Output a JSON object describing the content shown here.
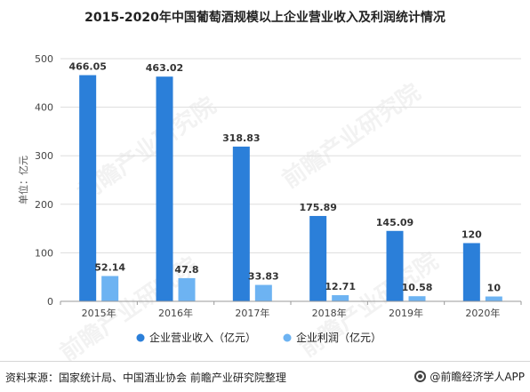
{
  "title": "2015-2020年中国葡萄酒规模以上企业营业收入及利润统计情况",
  "source": "资料来源：国家统计局、中国酒业协会 前瞻产业研究院整理",
  "brand": "@前瞻经济学人APP",
  "watermark": "前瞻产业研究院",
  "colors": {
    "revenue": "#2b7fd9",
    "profit": "#6db3f2",
    "grid": "#dddddd",
    "axis": "#999999"
  },
  "chart_data": {
    "type": "bar",
    "categories": [
      "2015年",
      "2016年",
      "2017年",
      "2018年",
      "2019年",
      "2020年"
    ],
    "series": [
      {
        "name": "企业营业收入（亿元）",
        "values": [
          466.05,
          463.02,
          318.83,
          175.89,
          145.09,
          120
        ]
      },
      {
        "name": "企业利润（亿元）",
        "values": [
          52.14,
          47.8,
          33.83,
          12.71,
          10.58,
          10
        ]
      }
    ],
    "data_labels": [
      [
        "466.05",
        "463.02",
        "318.83",
        "175.89",
        "145.09",
        "120"
      ],
      [
        "52.14",
        "47.8",
        "33.83",
        "12.71",
        "10.58",
        "10"
      ]
    ],
    "ylabel": "单位：亿元",
    "ylim": [
      0,
      500
    ],
    "yticks": [
      0,
      100,
      200,
      300,
      400,
      500
    ],
    "grid": true,
    "legend": "bottom-center"
  }
}
